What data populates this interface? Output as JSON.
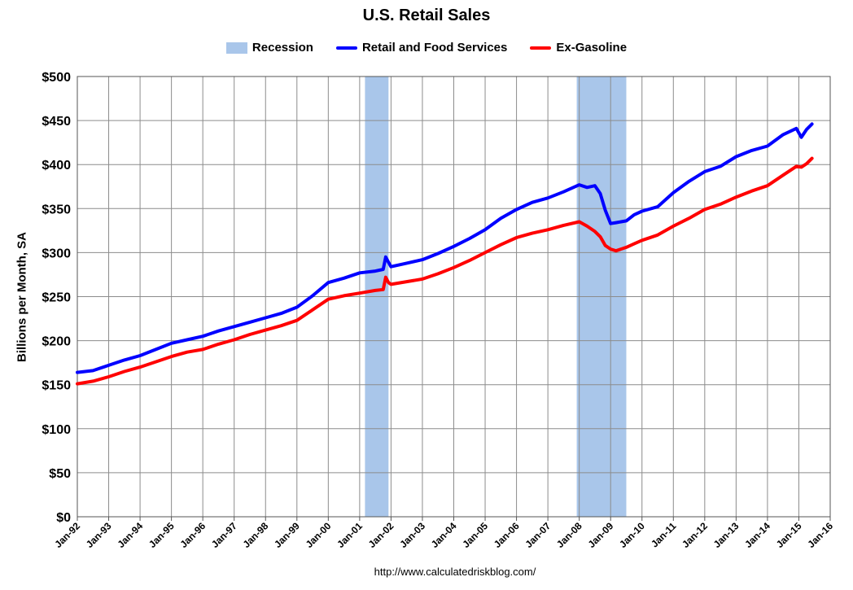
{
  "chart_data": {
    "type": "line",
    "title": "U.S. Retail Sales",
    "ylabel": "Billions per Month, SA",
    "xlabel": "",
    "source": "http://www.calculatedriskblog.com/",
    "ylim": [
      0,
      500
    ],
    "y_ticks": [
      "$0",
      "$50",
      "$100",
      "$150",
      "$200",
      "$250",
      "$300",
      "$350",
      "$400",
      "$450",
      "$500"
    ],
    "y_tick_values": [
      0,
      50,
      100,
      150,
      200,
      250,
      300,
      350,
      400,
      450,
      500
    ],
    "x_range": [
      1992,
      2016
    ],
    "x_ticks": [
      "Jan-92",
      "Jan-93",
      "Jan-94",
      "Jan-95",
      "Jan-96",
      "Jan-97",
      "Jan-98",
      "Jan-99",
      "Jan-00",
      "Jan-01",
      "Jan-02",
      "Jan-03",
      "Jan-04",
      "Jan-05",
      "Jan-06",
      "Jan-07",
      "Jan-08",
      "Jan-09",
      "Jan-10",
      "Jan-11",
      "Jan-12",
      "Jan-13",
      "Jan-14",
      "Jan-15",
      "Jan-16"
    ],
    "grid": true,
    "legend_position": "top",
    "recessions": [
      {
        "start": "Mar-01",
        "end": "Nov-01",
        "start_decimal": 2001.17,
        "end_decimal": 2001.92
      },
      {
        "start": "Dec-07",
        "end": "Jun-09",
        "start_decimal": 2007.92,
        "end_decimal": 2009.5
      }
    ],
    "legend": [
      {
        "label": "Recession",
        "kind": "box",
        "color": "#a9c6ea"
      },
      {
        "label": "Retail and Food Services",
        "kind": "line",
        "color": "#0000ff"
      },
      {
        "label": "Ex-Gasoline",
        "kind": "line",
        "color": "#ff0000"
      }
    ],
    "series": [
      {
        "name": "Retail and Food Services",
        "color": "#0000ff",
        "points": [
          [
            1992.0,
            164
          ],
          [
            1992.5,
            166
          ],
          [
            1993.0,
            172
          ],
          [
            1993.5,
            178
          ],
          [
            1994.0,
            183
          ],
          [
            1994.5,
            190
          ],
          [
            1995.0,
            197
          ],
          [
            1995.5,
            201
          ],
          [
            1996.0,
            205
          ],
          [
            1996.5,
            211
          ],
          [
            1997.0,
            216
          ],
          [
            1997.5,
            221
          ],
          [
            1998.0,
            226
          ],
          [
            1998.5,
            231
          ],
          [
            1999.0,
            238
          ],
          [
            1999.5,
            251
          ],
          [
            2000.0,
            266
          ],
          [
            2000.5,
            271
          ],
          [
            2001.0,
            277
          ],
          [
            2001.5,
            279
          ],
          [
            2001.75,
            281
          ],
          [
            2001.83,
            295
          ],
          [
            2001.92,
            289
          ],
          [
            2002.0,
            284
          ],
          [
            2002.5,
            288
          ],
          [
            2003.0,
            292
          ],
          [
            2003.5,
            299
          ],
          [
            2004.0,
            307
          ],
          [
            2004.5,
            316
          ],
          [
            2005.0,
            326
          ],
          [
            2005.5,
            339
          ],
          [
            2006.0,
            349
          ],
          [
            2006.5,
            357
          ],
          [
            2007.0,
            362
          ],
          [
            2007.5,
            369
          ],
          [
            2008.0,
            377
          ],
          [
            2008.25,
            374
          ],
          [
            2008.5,
            376
          ],
          [
            2008.67,
            367
          ],
          [
            2008.83,
            348
          ],
          [
            2009.0,
            333
          ],
          [
            2009.17,
            334
          ],
          [
            2009.5,
            336
          ],
          [
            2009.75,
            343
          ],
          [
            2010.0,
            347
          ],
          [
            2010.5,
            352
          ],
          [
            2011.0,
            368
          ],
          [
            2011.5,
            381
          ],
          [
            2012.0,
            392
          ],
          [
            2012.5,
            398
          ],
          [
            2013.0,
            409
          ],
          [
            2013.5,
            416
          ],
          [
            2014.0,
            421
          ],
          [
            2014.5,
            434
          ],
          [
            2014.92,
            441
          ],
          [
            2015.08,
            431
          ],
          [
            2015.25,
            440
          ],
          [
            2015.42,
            446
          ]
        ]
      },
      {
        "name": "Ex-Gasoline",
        "color": "#ff0000",
        "points": [
          [
            1992.0,
            151
          ],
          [
            1992.5,
            154
          ],
          [
            1993.0,
            159
          ],
          [
            1993.5,
            165
          ],
          [
            1994.0,
            170
          ],
          [
            1994.5,
            176
          ],
          [
            1995.0,
            182
          ],
          [
            1995.5,
            187
          ],
          [
            1996.0,
            190
          ],
          [
            1996.5,
            196
          ],
          [
            1997.0,
            201
          ],
          [
            1997.5,
            207
          ],
          [
            1998.0,
            212
          ],
          [
            1998.5,
            217
          ],
          [
            1999.0,
            223
          ],
          [
            1999.5,
            235
          ],
          [
            2000.0,
            247
          ],
          [
            2000.5,
            251
          ],
          [
            2001.0,
            254
          ],
          [
            2001.5,
            257
          ],
          [
            2001.75,
            258
          ],
          [
            2001.83,
            272
          ],
          [
            2001.92,
            266
          ],
          [
            2002.0,
            264
          ],
          [
            2002.5,
            267
          ],
          [
            2003.0,
            270
          ],
          [
            2003.5,
            276
          ],
          [
            2004.0,
            283
          ],
          [
            2004.5,
            291
          ],
          [
            2005.0,
            300
          ],
          [
            2005.5,
            309
          ],
          [
            2006.0,
            317
          ],
          [
            2006.5,
            322
          ],
          [
            2007.0,
            326
          ],
          [
            2007.5,
            331
          ],
          [
            2008.0,
            335
          ],
          [
            2008.25,
            330
          ],
          [
            2008.5,
            324
          ],
          [
            2008.67,
            318
          ],
          [
            2008.83,
            308
          ],
          [
            2009.0,
            304
          ],
          [
            2009.17,
            302
          ],
          [
            2009.5,
            306
          ],
          [
            2009.75,
            310
          ],
          [
            2010.0,
            314
          ],
          [
            2010.5,
            320
          ],
          [
            2011.0,
            330
          ],
          [
            2011.5,
            339
          ],
          [
            2012.0,
            349
          ],
          [
            2012.5,
            355
          ],
          [
            2013.0,
            363
          ],
          [
            2013.5,
            370
          ],
          [
            2014.0,
            376
          ],
          [
            2014.5,
            388
          ],
          [
            2014.92,
            398
          ],
          [
            2015.08,
            397
          ],
          [
            2015.25,
            401
          ],
          [
            2015.42,
            407
          ]
        ]
      }
    ]
  }
}
